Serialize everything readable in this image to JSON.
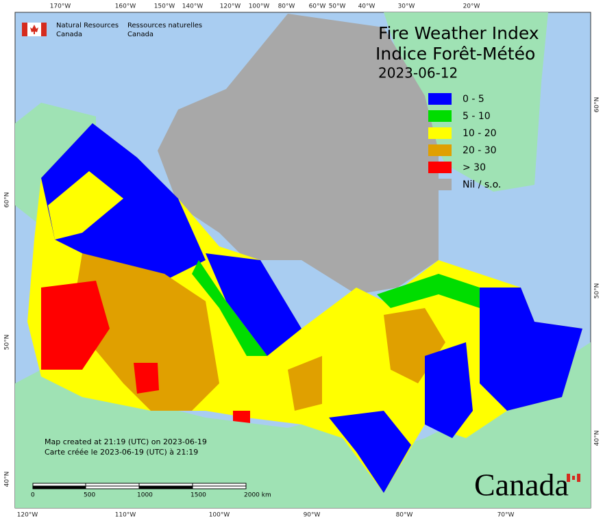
{
  "header": {
    "org_en": [
      "Natural Resources",
      "Canada"
    ],
    "org_fr": [
      "Ressources naturelles",
      "Canada"
    ]
  },
  "title": {
    "en": "Fire Weather Index",
    "fr": "Indice Forêt-Météo",
    "date": "2023-06-12"
  },
  "legend": [
    {
      "label": "0 - 5",
      "color": "#0000ff"
    },
    {
      "label": "5 - 10",
      "color": "#00dd00"
    },
    {
      "label": "10 - 20",
      "color": "#ffff00"
    },
    {
      "label": "20 - 30",
      "color": "#e0a000"
    },
    {
      "label": "> 30",
      "color": "#ff0000"
    },
    {
      "label": "Nil / s.o.",
      "color": "#a8a8a8"
    }
  ],
  "graticule": {
    "top": [
      "170°W",
      "160°W",
      "150°W",
      "140°W",
      "120°W",
      "100°W",
      "80°W",
      "60°W",
      "50°W",
      "40°W",
      "30°W",
      "20°W"
    ],
    "bottom": [
      "120°W",
      "110°W",
      "100°W",
      "90°W",
      "80°W",
      "70°W"
    ],
    "left": [
      "60°N",
      "50°N",
      "40°N"
    ],
    "right": [
      "60°N",
      "50°N",
      "40°N"
    ]
  },
  "credits": [
    "Map created at 21:19 (UTC) on 2023-06-19",
    "Carte créée le 2023-06-19 (UTC) à 21:19"
  ],
  "scale_bar": [
    "0",
    "500",
    "1000",
    "1500",
    "2000 km"
  ],
  "wordmark": "Canada"
}
